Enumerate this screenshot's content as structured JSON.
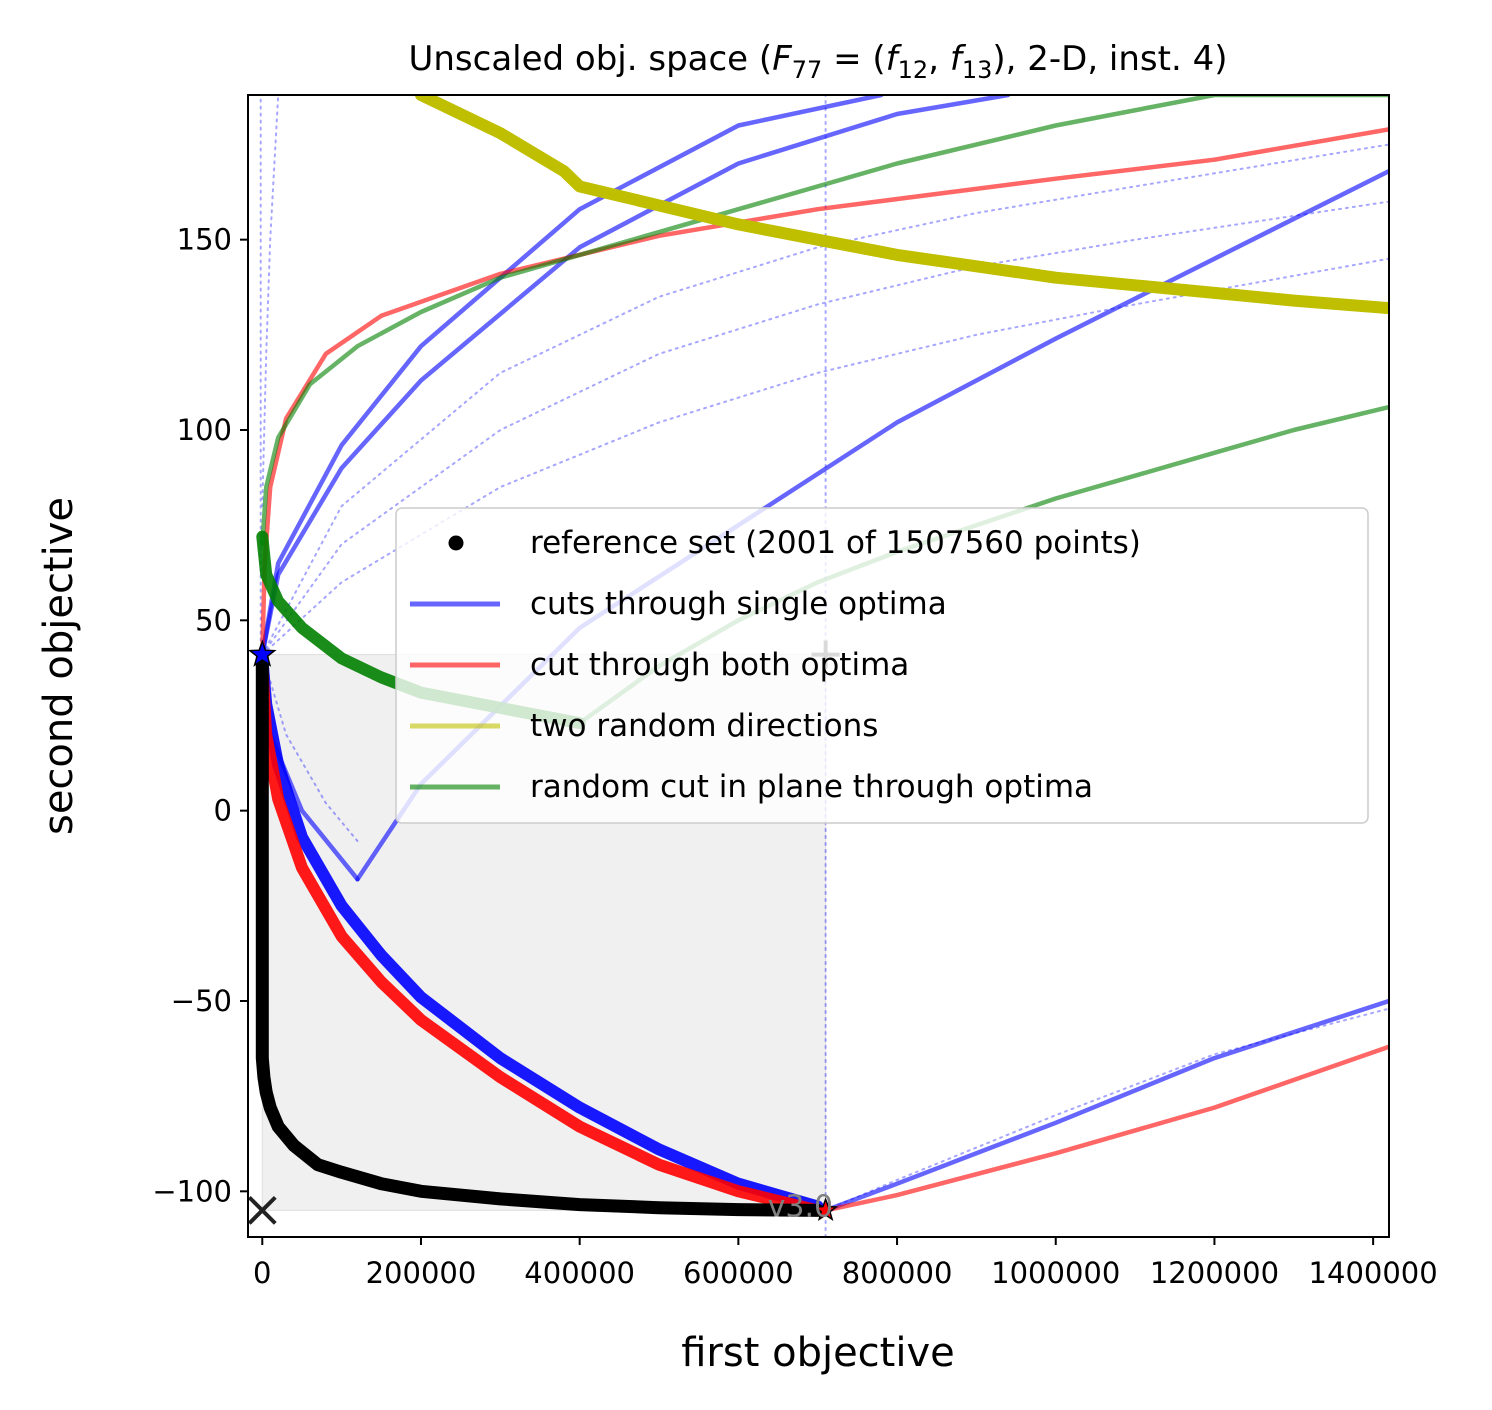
{
  "chart_data": {
    "type": "line",
    "title_prefix": "Unscaled obj. space (",
    "title_math": "F",
    "title_sub": "77",
    "title_eq": " = (",
    "title_f1": "f",
    "title_f1_sub": "12",
    "title_comma": ", ",
    "title_f2": "f",
    "title_f2_sub": "13",
    "title_suffix": "), 2-D, inst. 4)",
    "xlabel": "first objective",
    "ylabel": "second objective",
    "xlim": [
      -18000,
      1420000
    ],
    "ylim": [
      -112,
      188
    ],
    "xticks": [
      0,
      200000,
      400000,
      600000,
      800000,
      1000000,
      1200000,
      1400000
    ],
    "xtick_labels": [
      "0",
      "200000",
      "400000",
      "600000",
      "800000",
      "1000000",
      "1200000",
      "1400000"
    ],
    "yticks": [
      -100,
      -50,
      0,
      50,
      100,
      150
    ],
    "ytick_labels": [
      "−100",
      "−50",
      "0",
      "50",
      "100",
      "150"
    ],
    "version_text": "v3.0",
    "legend": {
      "placement": "center-right",
      "entries": [
        {
          "label": "reference set (2001 of 1507560 points)",
          "marker": "dot",
          "color": "#000000"
        },
        {
          "label": "cuts through single optima",
          "marker": "line",
          "color": "#0000ff"
        },
        {
          "label": "cut through both optima",
          "marker": "line",
          "color": "#ff0000"
        },
        {
          "label": "two random directions",
          "marker": "line",
          "color": "#bfbf00"
        },
        {
          "label": "random cut in plane through optima",
          "marker": "line",
          "color": "#008000"
        }
      ]
    },
    "colors": {
      "reference": "#000000",
      "single": "#0000ff",
      "both": "#ff0000",
      "random": "#bfbf00",
      "plane": "#008000",
      "dominated_region": "#f0f0f0"
    },
    "optimum_1": [
      0,
      41
    ],
    "optimum_2": [
      710000,
      -105
    ],
    "ideal_point": [
      0,
      -105
    ],
    "nadir_point": [
      710000,
      41
    ],
    "reference_set": {
      "x": [
        0,
        0,
        0,
        0,
        0,
        2000,
        5000,
        10000,
        20000,
        40000,
        70000,
        100000,
        150000,
        200000,
        300000,
        400000,
        500000,
        600000,
        700000
      ],
      "y": [
        40,
        20,
        0,
        -30,
        -65,
        -70,
        -74,
        -78,
        -83,
        -88,
        -93,
        -95,
        -98,
        -100,
        -102,
        -103.5,
        -104.3,
        -104.8,
        -105
      ]
    },
    "series": [
      {
        "group": "single",
        "kind": "thick",
        "x": [
          0,
          5000,
          20000,
          50000,
          100000,
          150000,
          200000,
          300000,
          400000,
          500000,
          600000,
          700000
        ],
        "y": [
          40,
          28,
          12,
          -7,
          -25,
          -38,
          -49,
          -65,
          -78,
          -89,
          -98,
          -104
        ]
      },
      {
        "group": "single",
        "kind": "solid",
        "x": [
          0,
          20000,
          100000,
          200000,
          400000,
          600000,
          780000
        ],
        "y": [
          41,
          65,
          96,
          122,
          158,
          180,
          188
        ]
      },
      {
        "group": "single",
        "kind": "solid",
        "x": [
          0,
          20000,
          100000,
          200000,
          400000,
          600000,
          800000,
          940000
        ],
        "y": [
          41,
          62,
          90,
          113,
          148,
          170,
          183,
          188
        ]
      },
      {
        "group": "single",
        "kind": "solid",
        "x": [
          0,
          10000,
          50000,
          120000
        ],
        "y": [
          41,
          20,
          0,
          -18
        ]
      },
      {
        "group": "single",
        "kind": "solid",
        "x": [
          120000,
          200000,
          400000,
          600000,
          800000,
          1000000,
          1200000,
          1420000
        ],
        "y": [
          -18,
          7,
          48,
          75,
          102,
          124,
          145,
          168
        ]
      },
      {
        "group": "single",
        "kind": "solid",
        "x": [
          710000,
          800000,
          1000000,
          1200000,
          1420000
        ],
        "y": [
          -105,
          -98,
          -82,
          -65,
          -50
        ]
      },
      {
        "group": "single",
        "kind": "dotted",
        "x": [
          0,
          100000,
          300000,
          500000,
          700000,
          900000,
          1100000,
          1420000
        ],
        "y": [
          41,
          80,
          115,
          135,
          148,
          157,
          164,
          175
        ]
      },
      {
        "group": "single",
        "kind": "dotted",
        "x": [
          0,
          100000,
          300000,
          500000,
          700000,
          900000,
          1100000,
          1420000
        ],
        "y": [
          41,
          70,
          100,
          120,
          133,
          143,
          150,
          160
        ]
      },
      {
        "group": "single",
        "kind": "dotted",
        "x": [
          0,
          100000,
          300000,
          500000,
          700000,
          900000,
          1100000,
          1420000
        ],
        "y": [
          41,
          60,
          85,
          102,
          115,
          125,
          133,
          145
        ]
      },
      {
        "group": "single",
        "kind": "dotted",
        "x": [
          0,
          30000,
          80000,
          120000
        ],
        "y": [
          41,
          20,
          2,
          -8
        ]
      },
      {
        "group": "single",
        "kind": "dotted",
        "x": [
          710000,
          800000,
          1000000,
          1200000,
          1420000
        ],
        "y": [
          -105,
          -97,
          -80,
          -64,
          -52
        ]
      },
      {
        "group": "single",
        "kind": "dotted",
        "x": [
          -2000,
          -2000
        ],
        "y": [
          41,
          188
        ]
      },
      {
        "group": "single",
        "kind": "dotted",
        "x": [
          710000,
          710000
        ],
        "y": [
          -112,
          188
        ]
      },
      {
        "group": "single",
        "kind": "dotted",
        "x": [
          0,
          5000,
          10000,
          20000
        ],
        "y": [
          80,
          120,
          150,
          188
        ]
      },
      {
        "group": "both",
        "kind": "thick",
        "x": [
          0,
          5000,
          20000,
          50000,
          100000,
          150000,
          200000,
          300000,
          400000,
          500000,
          600000,
          700000
        ],
        "y": [
          38,
          20,
          3,
          -15,
          -33,
          -45,
          -55,
          -70,
          -83,
          -93,
          -100,
          -105
        ]
      },
      {
        "group": "both",
        "kind": "solid",
        "x": [
          0,
          3000,
          10000,
          30000,
          80000,
          150000,
          300000,
          500000,
          700000,
          1000000,
          1200000,
          1420000
        ],
        "y": [
          41,
          65,
          85,
          103,
          120,
          130,
          141,
          151,
          158,
          166,
          171,
          179
        ]
      },
      {
        "group": "both",
        "kind": "solid",
        "x": [
          710000,
          800000,
          1000000,
          1200000,
          1420000
        ],
        "y": [
          -105,
          -101,
          -90,
          -78,
          -62
        ]
      },
      {
        "group": "random",
        "kind": "thick",
        "x": [
          200000,
          300000,
          380000,
          400000,
          500000,
          600000,
          700000,
          800000,
          900000,
          1000000,
          1100000,
          1200000,
          1300000,
          1420000
        ],
        "y": [
          188,
          178,
          168,
          164,
          159,
          154,
          150,
          146,
          143,
          140,
          138,
          136,
          134,
          132
        ]
      },
      {
        "group": "plane",
        "kind": "thick",
        "x": [
          0,
          5000,
          20000,
          50000,
          100000,
          150000,
          200000,
          300000,
          400000
        ],
        "y": [
          72,
          62,
          55,
          48,
          40,
          35,
          31,
          27,
          23
        ]
      },
      {
        "group": "plane",
        "kind": "solid",
        "x": [
          0,
          5000,
          20000,
          60000,
          120000,
          200000,
          300000,
          400000,
          600000,
          800000,
          1000000,
          1200000,
          1420000
        ],
        "y": [
          70,
          85,
          98,
          112,
          122,
          131,
          140,
          146,
          158,
          170,
          180,
          188,
          188
        ]
      },
      {
        "group": "plane",
        "kind": "solid",
        "x": [
          400000,
          500000,
          600000,
          700000,
          800000,
          900000,
          1000000,
          1100000,
          1200000,
          1300000,
          1420000
        ],
        "y": [
          23,
          38,
          50,
          60,
          68,
          75,
          82,
          88,
          94,
          100,
          106
        ]
      }
    ]
  }
}
